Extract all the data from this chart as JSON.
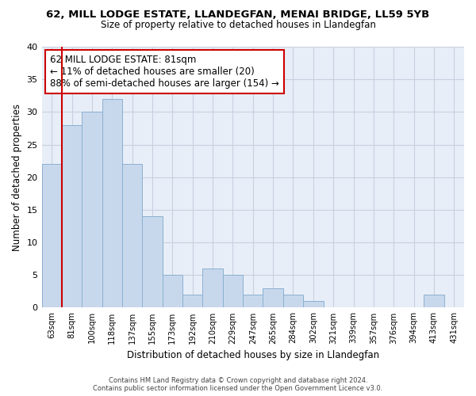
{
  "title": "62, MILL LODGE ESTATE, LLANDEGFAN, MENAI BRIDGE, LL59 5YB",
  "subtitle": "Size of property relative to detached houses in Llandegfan",
  "xlabel": "Distribution of detached houses by size in Llandegfan",
  "ylabel": "Number of detached properties",
  "bar_labels": [
    "63sqm",
    "81sqm",
    "100sqm",
    "118sqm",
    "137sqm",
    "155sqm",
    "173sqm",
    "192sqm",
    "210sqm",
    "229sqm",
    "247sqm",
    "265sqm",
    "284sqm",
    "302sqm",
    "321sqm",
    "339sqm",
    "357sqm",
    "376sqm",
    "394sqm",
    "413sqm",
    "431sqm"
  ],
  "bar_values": [
    22,
    28,
    30,
    32,
    22,
    14,
    5,
    2,
    6,
    5,
    2,
    3,
    2,
    1,
    0,
    0,
    0,
    0,
    0,
    2,
    0
  ],
  "bar_color": "#c8d8ec",
  "bar_edge_color": "#8ab0d0",
  "highlight_bar_index": 1,
  "highlight_line_color": "#cc0000",
  "annotation_box_title": "62 MILL LODGE ESTATE: 81sqm",
  "annotation_line1": "← 11% of detached houses are smaller (20)",
  "annotation_line2": "88% of semi-detached houses are larger (154) →",
  "annotation_box_edge_color": "#cc0000",
  "ylim": [
    0,
    40
  ],
  "yticks": [
    0,
    5,
    10,
    15,
    20,
    25,
    30,
    35,
    40
  ],
  "footer_line1": "Contains HM Land Registry data © Crown copyright and database right 2024.",
  "footer_line2": "Contains public sector information licensed under the Open Government Licence v3.0.",
  "background_color": "#ffffff",
  "plot_bg_color": "#e8eef8",
  "grid_color": "#c8d0e0"
}
